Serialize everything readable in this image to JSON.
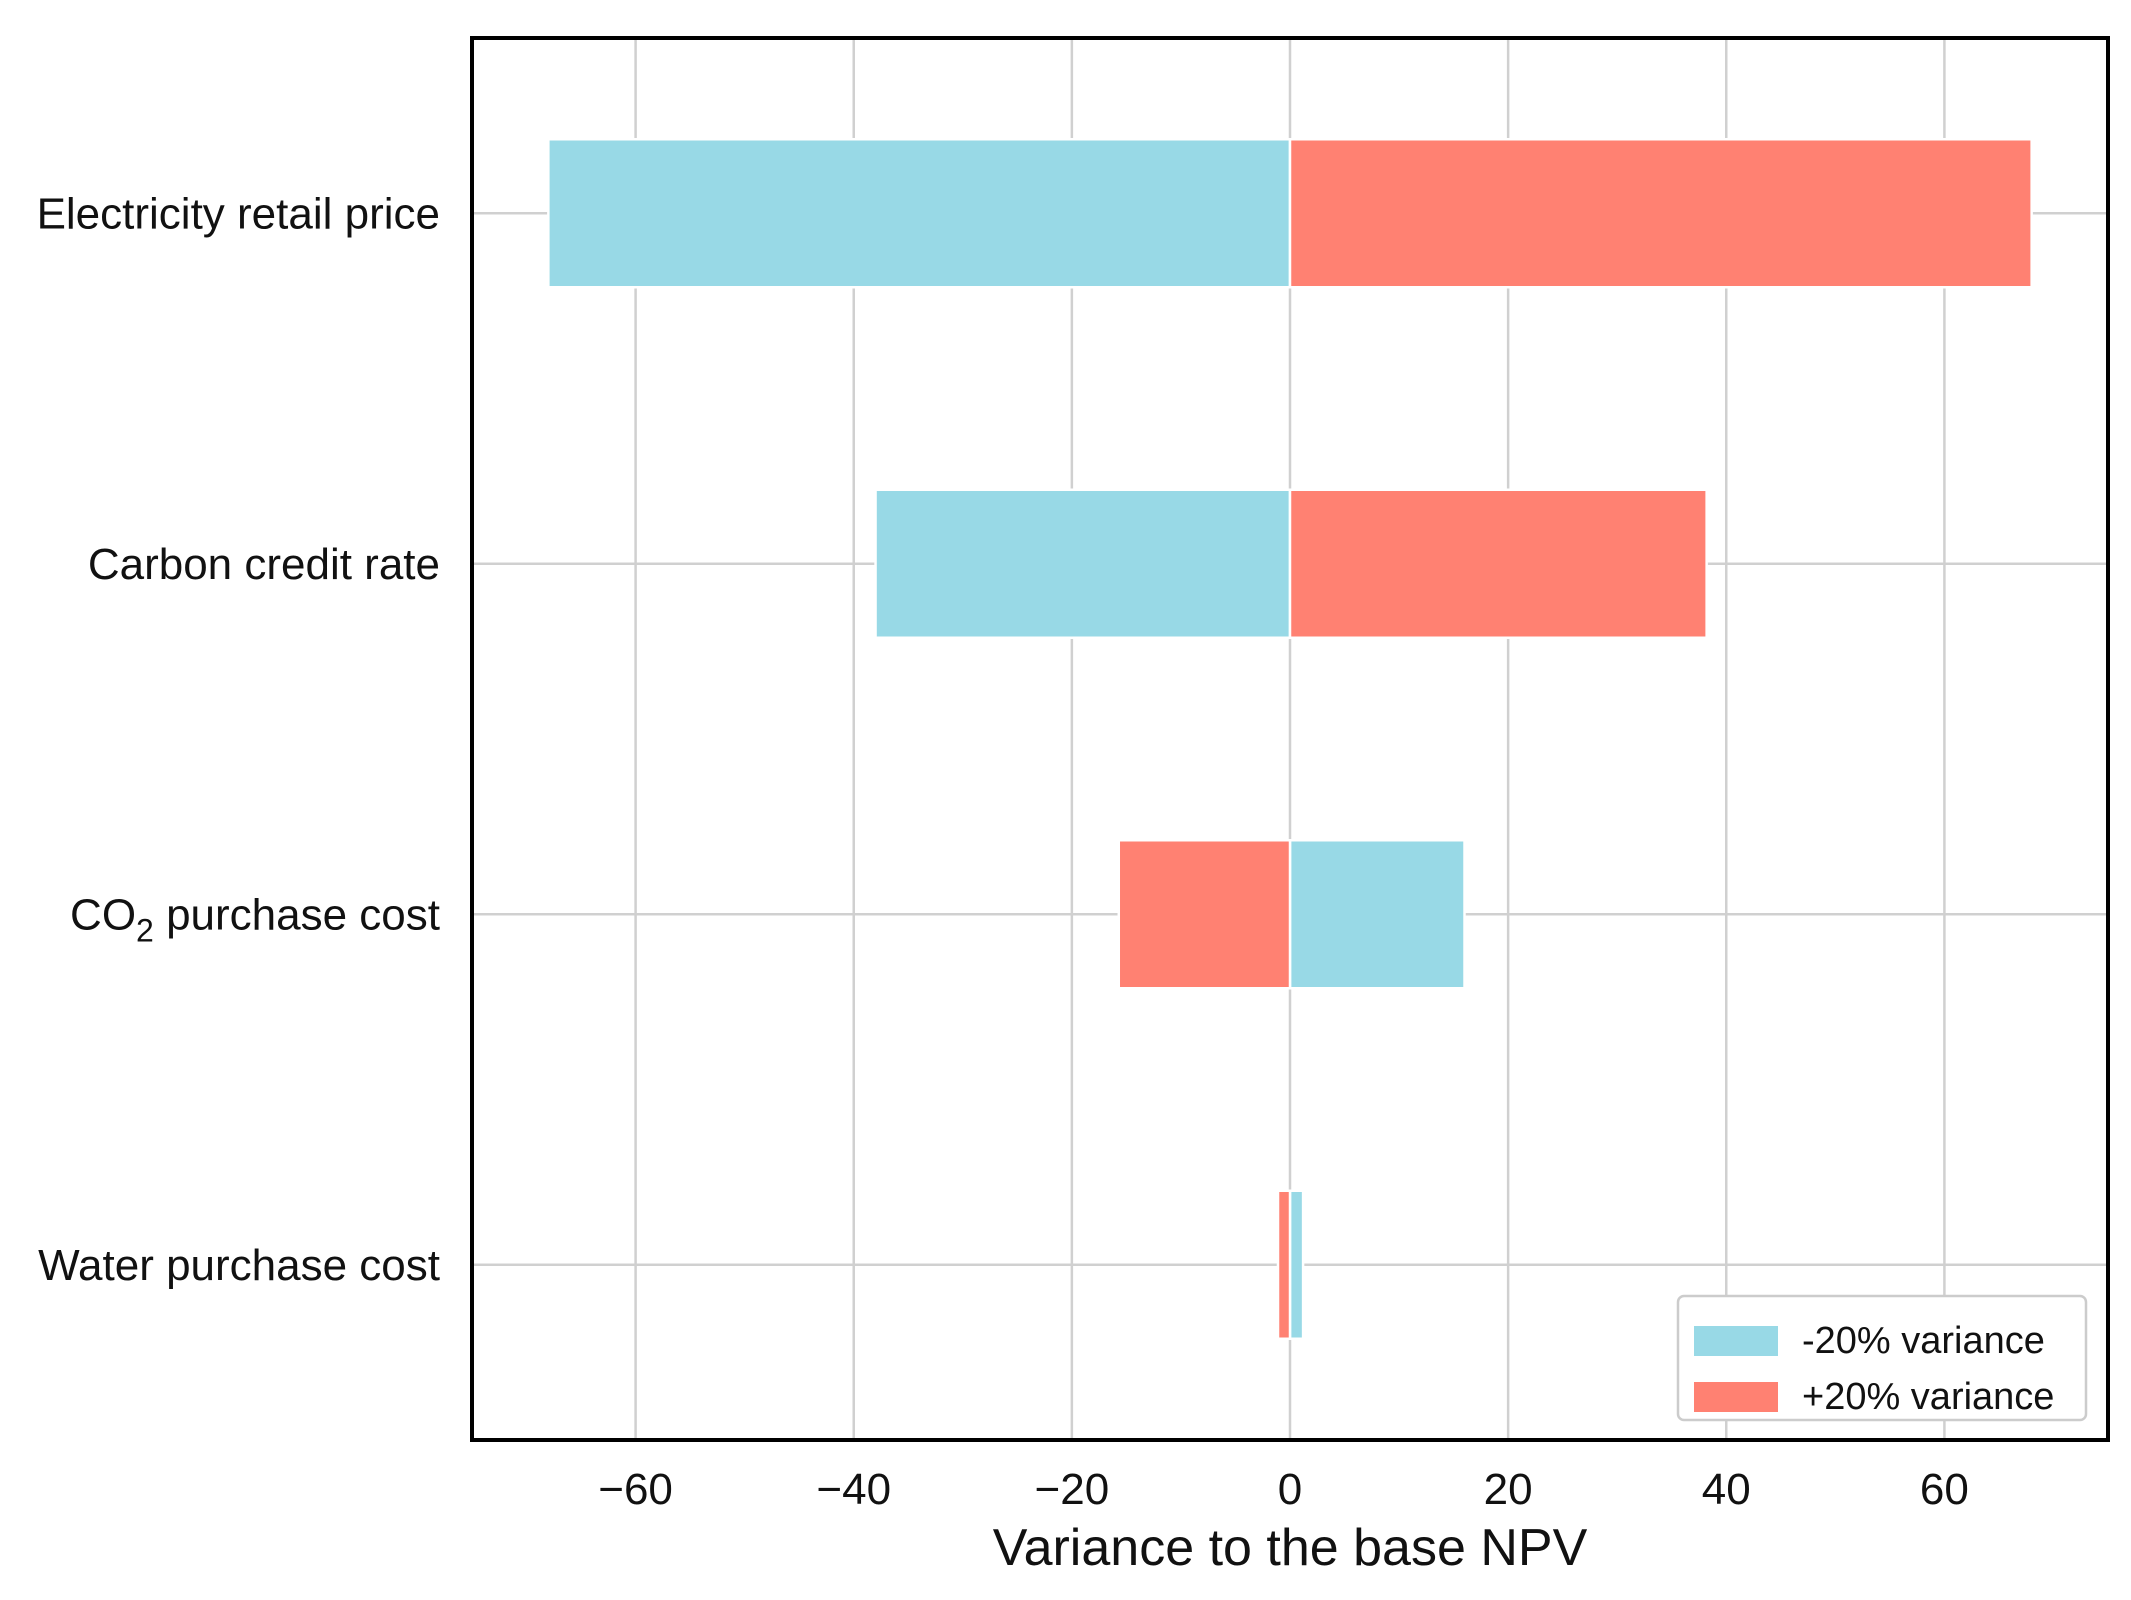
{
  "chart_data": {
    "type": "bar",
    "orientation": "horizontal",
    "chart_style": "tornado",
    "title": "",
    "xlabel": "Variance to the base NPV",
    "ylabel": "",
    "xlim": [
      -75,
      75
    ],
    "xticks": [
      -60,
      -40,
      -20,
      0,
      20,
      40,
      60
    ],
    "xtick_labels": [
      "−60",
      "−40",
      "−20",
      "0",
      "20",
      "40",
      "60"
    ],
    "grid": true,
    "legend_position": "bottom-right",
    "categories": [
      {
        "id": "electricity",
        "label": "Electricity retail price",
        "sub": ""
      },
      {
        "id": "carbon",
        "label": "Carbon credit rate",
        "sub": ""
      },
      {
        "id": "co2",
        "label": "CO",
        "sub": "2",
        "label_suffix": " purchase cost"
      },
      {
        "id": "water",
        "label": "Water purchase cost",
        "sub": ""
      }
    ],
    "series": [
      {
        "name": "-20% variance",
        "color": "#98d9e6",
        "values": [
          -68,
          -38,
          16,
          1.2
        ]
      },
      {
        "name": "+20% variance",
        "color": "#ff8172",
        "values": [
          68,
          38.2,
          -15.7,
          -1.1
        ]
      }
    ]
  }
}
